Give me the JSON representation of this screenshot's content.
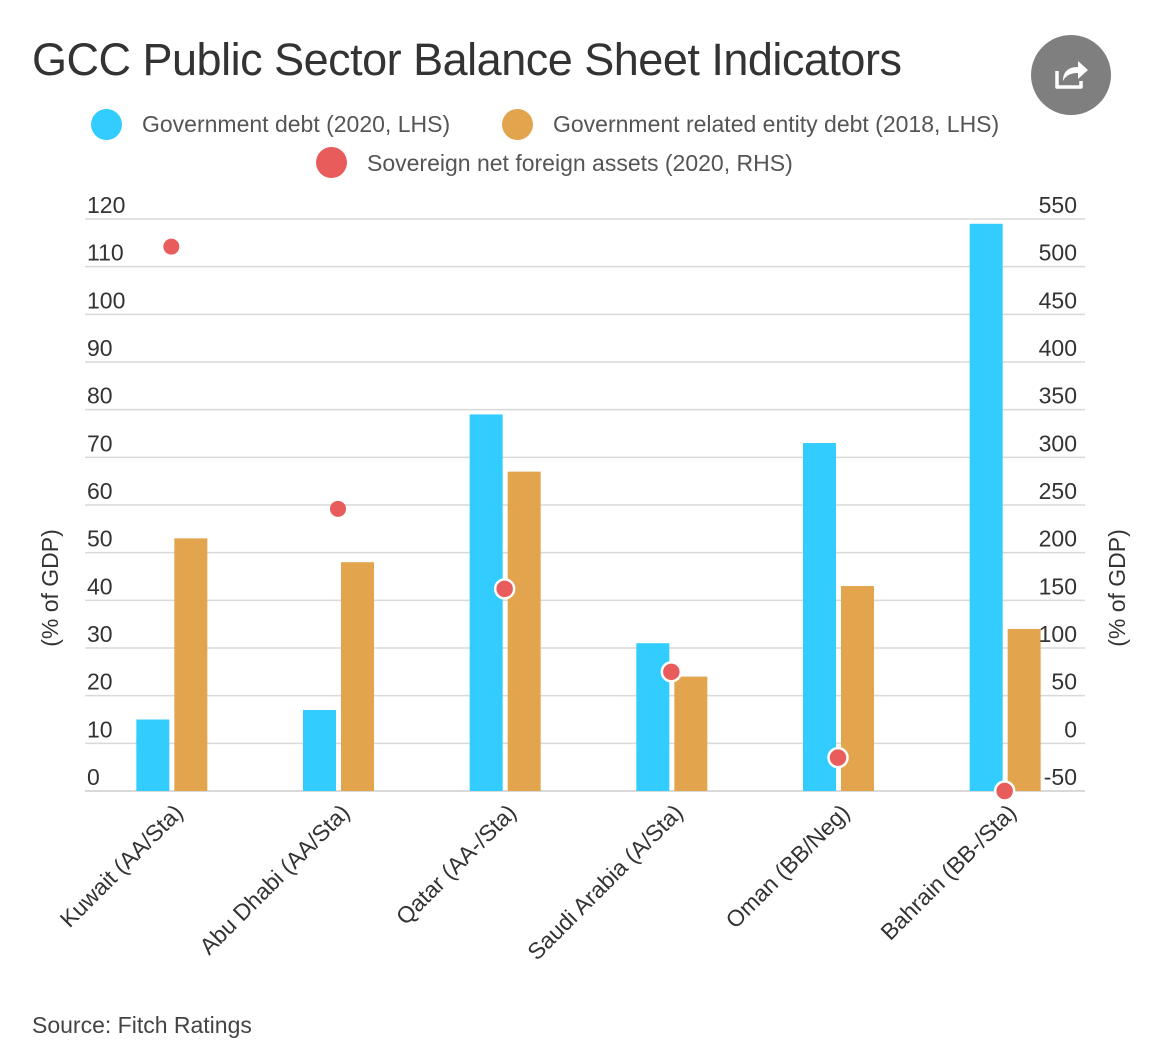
{
  "title": "GCC Public Sector Balance Sheet Indicators",
  "source": "Source: Fitch Ratings",
  "share": {
    "icon": "share-icon"
  },
  "colors": {
    "gov_debt": "#33ccff",
    "gre_debt": "#e2a54e",
    "nfa": "#e85c5c",
    "grid": "#d9d9d9",
    "axis_text": "#333333"
  },
  "chart_data": {
    "type": "bar",
    "title": "GCC Public Sector Balance Sheet Indicators",
    "categories": [
      "Kuwait (AA/Sta)",
      "Abu Dhabi (AA/Sta)",
      "Qatar (AA-/Sta)",
      "Saudi Arabia (A/Sta)",
      "Oman (BB/Neg)",
      "Bahrain (BB-/Sta)"
    ],
    "series": [
      {
        "name": "Government debt (2020, LHS)",
        "type": "bar",
        "axis": "left",
        "values": [
          15,
          17,
          79,
          31,
          73,
          119
        ]
      },
      {
        "name": "Government related entity debt (2018, LHS)",
        "type": "bar",
        "axis": "left",
        "values": [
          53,
          48,
          67,
          24,
          43,
          34
        ]
      },
      {
        "name": "Sovereign net foreign assets (2020, RHS)",
        "type": "scatter",
        "axis": "right",
        "values": [
          521,
          246,
          162,
          75,
          -15,
          -50
        ]
      }
    ],
    "ylabel_left": "(% of GDP)",
    "ylabel_right": "(% of GDP)",
    "ylim_left": [
      0,
      120
    ],
    "ylim_right": [
      -50,
      550
    ],
    "yticks_left": [
      0,
      10,
      20,
      30,
      40,
      50,
      60,
      70,
      80,
      90,
      100,
      110,
      120
    ],
    "yticks_right": [
      -50,
      0,
      50,
      100,
      150,
      200,
      250,
      300,
      350,
      400,
      450,
      500,
      550
    ],
    "grid": true,
    "legend_position": "top"
  }
}
